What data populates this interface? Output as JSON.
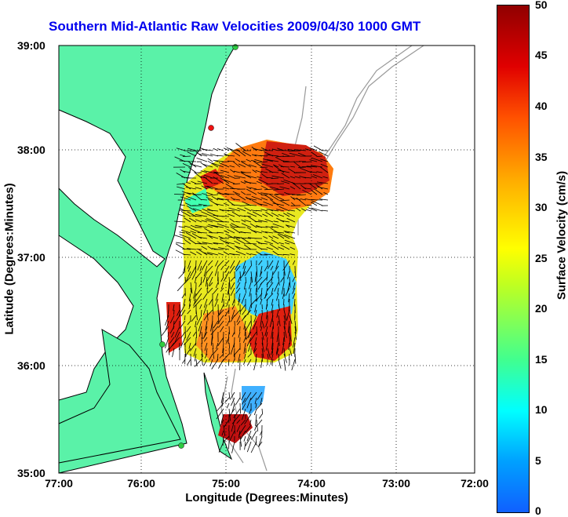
{
  "title": "Southern Mid-Atlantic Raw Velocities 2009/04/30 1000 GMT",
  "x_axis": {
    "label": "Longitude (Degrees:Minutes)",
    "ticks": [
      "77:00",
      "76:00",
      "75:00",
      "74:00",
      "73:00",
      "72:00"
    ]
  },
  "y_axis": {
    "label": "Latitude (Degrees:Minutes)",
    "ticks": [
      "39:00",
      "38:00",
      "37:00",
      "36:00",
      "35:00"
    ]
  },
  "colorbar": {
    "label": "Surface Velocity (cm/s)",
    "ticks": [
      "50",
      "45",
      "40",
      "35",
      "30",
      "25",
      "20",
      "15",
      "10",
      "5",
      "0"
    ],
    "range": [
      0,
      50
    ],
    "colors": [
      "#1060ff",
      "#00ffff",
      "#40ff90",
      "#ffff00",
      "#ff8000",
      "#e00000",
      "#900000"
    ]
  },
  "colors": {
    "land": "#5af2a8",
    "title": "#0000ee",
    "coastline": "#000000",
    "bathymetry": "#999999",
    "station": "#2ecc40",
    "station_alt": "#ee1111"
  }
}
